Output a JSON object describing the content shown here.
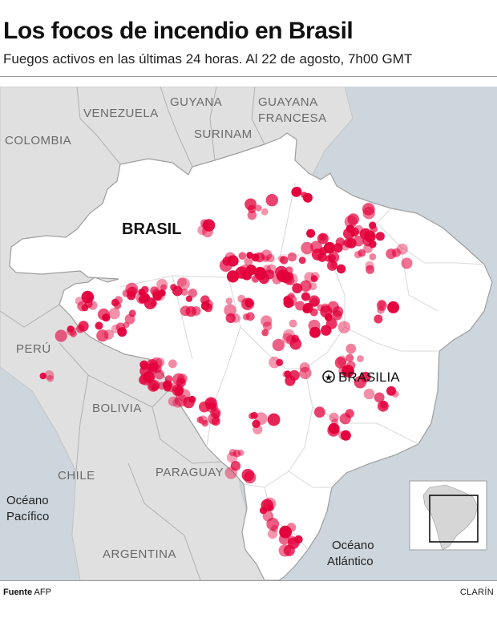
{
  "header": {
    "title": "Los focos de incendio en Brasil",
    "subtitle": "Fuegos activos en las últimas 24 horas. Al 22 de agosto, 7h00 GMT"
  },
  "map": {
    "colors": {
      "ocean": "#cdd6dc",
      "neighbors": "#e0e0e0",
      "brazil": "#ffffff",
      "fire": "#e3003b",
      "borders": "#9e9e9e"
    },
    "labels": {
      "brazil": "BRASIL",
      "venezuela": "VENEZUELA",
      "colombia": "COLOMBIA",
      "guyana": "GUYANA",
      "suriname": "SURINAM",
      "french_guiana_1": "GUAYANA",
      "french_guiana_2": "FRANCESA",
      "peru": "PERÚ",
      "bolivia": "BOLIVIA",
      "chile": "CHILE",
      "paraguay": "PARAGUAY",
      "argentina": "ARGENTINA",
      "pacific_1": "Océano",
      "pacific_2": "Pacífico",
      "atlantic_1": "Océano",
      "atlantic_2": "Atlántico",
      "capital": "BRASILIA"
    },
    "legend_marker": "fire-hotspot",
    "inset": "south-america-locator"
  },
  "footer": {
    "source_label": "Fuente",
    "source_value": "AFP",
    "brand": "CLARÍN"
  }
}
